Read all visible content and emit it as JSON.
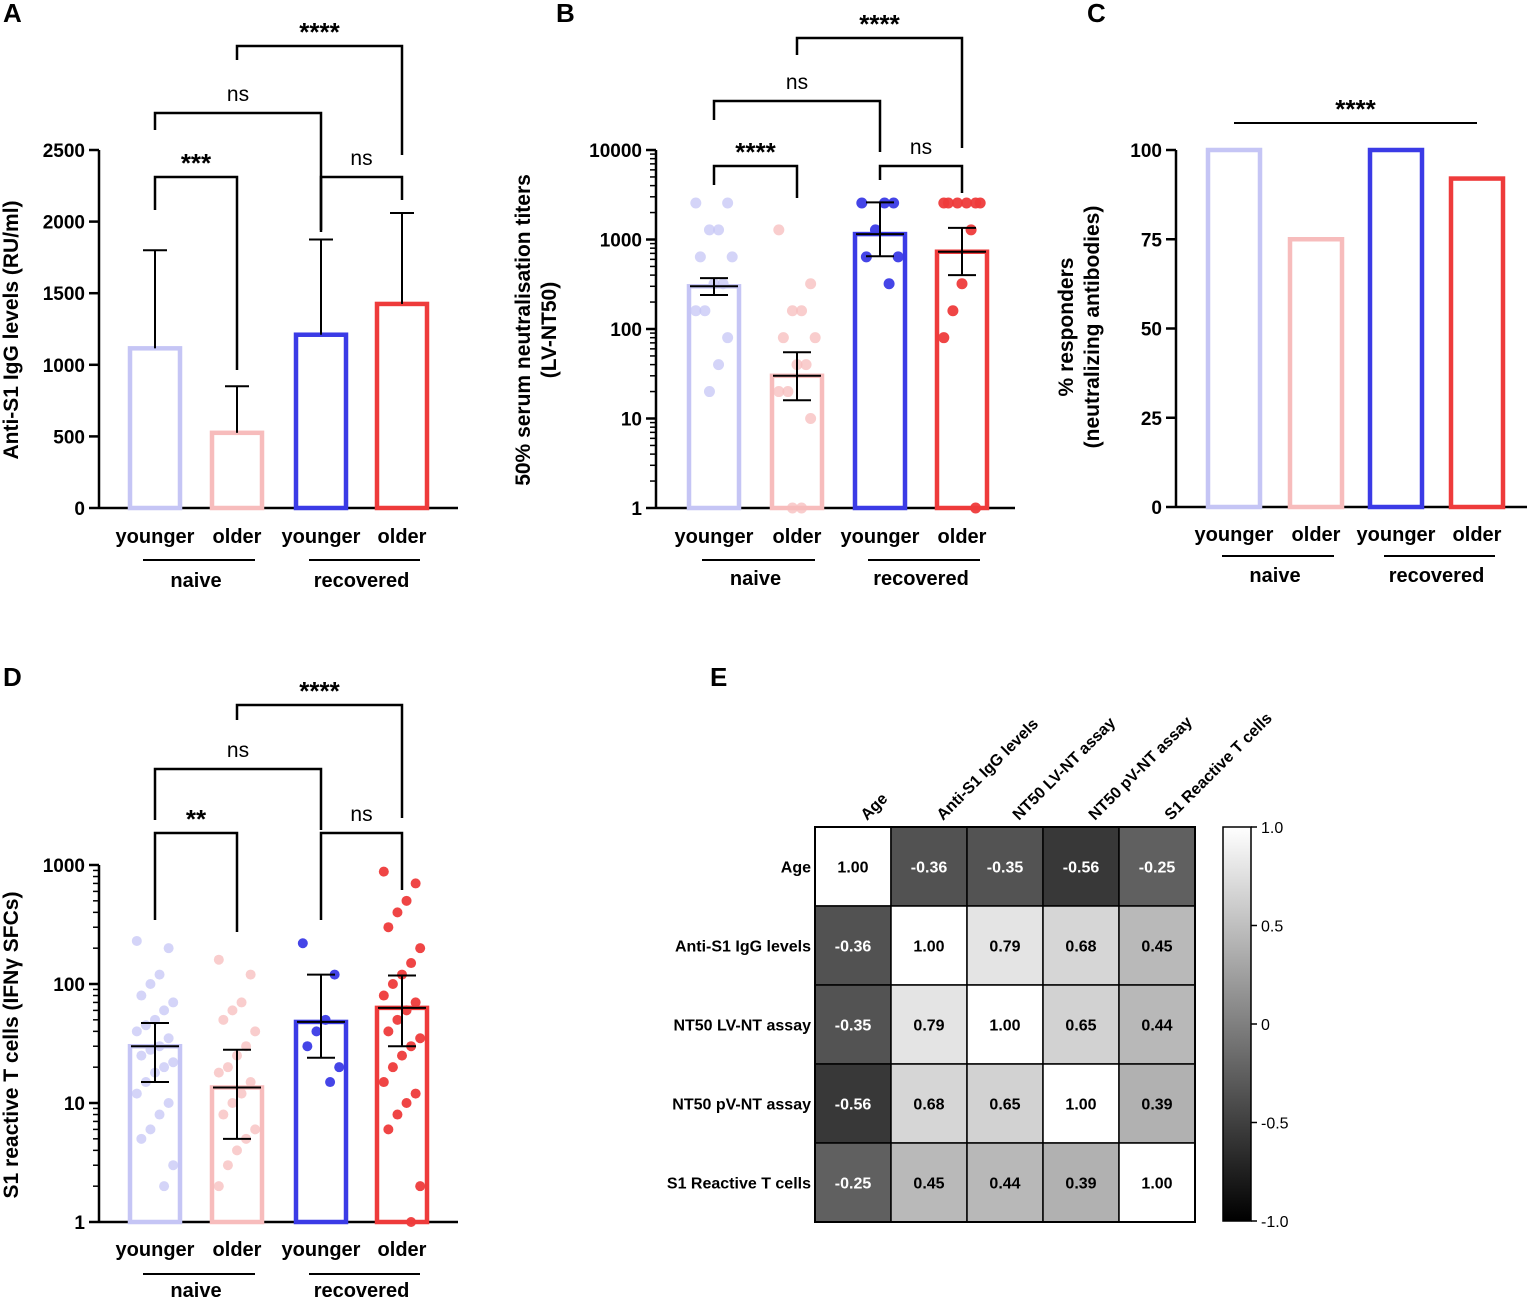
{
  "colors": {
    "naive_younger": "#c5c5f5",
    "naive_older": "#f7bcbc",
    "recovered_younger": "#3b3be6",
    "recovered_older": "#ee3b3b"
  },
  "categories": [
    "younger",
    "older",
    "younger",
    "older"
  ],
  "groups": [
    "naive",
    "recovered"
  ],
  "chart_data": [
    {
      "panel": "A",
      "type": "bar",
      "scale": "linear",
      "ylabel": "Anti-S1 IgG levels (RU/ml)",
      "ylim": [
        0,
        2500
      ],
      "yticks": [
        "0",
        "500",
        "1000",
        "1500",
        "2000",
        "2500"
      ],
      "values": [
        1115,
        525,
        1210,
        1425
      ],
      "error_upper": [
        1800,
        850,
        1875,
        2060
      ],
      "comparisons": [
        {
          "from": 0,
          "to": 1,
          "label": "***"
        },
        {
          "from": 2,
          "to": 3,
          "label": "ns"
        },
        {
          "from": 0,
          "to": 2,
          "label": "ns"
        },
        {
          "from": 1,
          "to": 3,
          "label": "****"
        }
      ]
    },
    {
      "panel": "B",
      "type": "bar",
      "scale": "log",
      "ylabel": "50% serum neutralisation titers",
      "ylabel2": "(LV-NT50)",
      "ylim": [
        1,
        10000
      ],
      "yticks": [
        "1",
        "10",
        "100",
        "1000",
        "10000"
      ],
      "values": [
        300,
        30,
        1150,
        730
      ],
      "error_low": [
        240,
        16,
        650,
        400
      ],
      "error_high": [
        370,
        55,
        2600,
        1350
      ],
      "points": [
        [
          2560,
          2560,
          1280,
          1280,
          640,
          640,
          320,
          320,
          160,
          160,
          80,
          40,
          20
        ],
        [
          1280,
          320,
          160,
          160,
          80,
          80,
          40,
          40,
          20,
          20,
          10,
          1,
          1
        ],
        [
          2560,
          2560,
          2560,
          1280,
          640,
          640,
          320
        ],
        [
          2560,
          2560,
          2560,
          2560,
          2560,
          2560,
          1280,
          320,
          160,
          80,
          1
        ]
      ],
      "comparisons": [
        {
          "from": 0,
          "to": 1,
          "label": "****"
        },
        {
          "from": 2,
          "to": 3,
          "label": "ns"
        },
        {
          "from": 0,
          "to": 2,
          "label": "ns"
        },
        {
          "from": 1,
          "to": 3,
          "label": "****"
        }
      ]
    },
    {
      "panel": "C",
      "type": "bar",
      "scale": "linear",
      "ylabel": "% responders",
      "ylabel2": "(neutralizing antibodies)",
      "ylim": [
        0,
        100
      ],
      "yticks": [
        "0",
        "25",
        "50",
        "75",
        "100"
      ],
      "values": [
        100,
        75,
        100,
        92
      ],
      "comparisons": [
        {
          "from": 0,
          "to": 3,
          "label": "****",
          "style": "line"
        }
      ]
    },
    {
      "panel": "D",
      "type": "bar",
      "scale": "log",
      "ylabel": "S1 reactive T cells (IFNγ SFCs)",
      "ylim": [
        1,
        1000
      ],
      "yticks": [
        "1",
        "10",
        "100",
        "1000"
      ],
      "values": [
        30,
        13.5,
        48,
        63
      ],
      "error_low": [
        15,
        5,
        24,
        30
      ],
      "error_high": [
        47,
        28,
        120,
        118
      ],
      "points": [
        [
          230,
          200,
          120,
          100,
          80,
          70,
          60,
          50,
          45,
          40,
          35,
          30,
          28,
          25,
          22,
          20,
          18,
          15,
          12,
          10,
          8,
          6,
          5,
          3,
          2
        ],
        [
          160,
          120,
          70,
          60,
          50,
          40,
          30,
          25,
          20,
          18,
          15,
          12,
          10,
          8,
          6,
          5,
          4,
          3,
          2
        ],
        [
          220,
          120,
          50,
          40,
          30,
          20,
          15
        ],
        [
          880,
          700,
          500,
          400,
          300,
          200,
          150,
          120,
          100,
          80,
          70,
          60,
          50,
          40,
          35,
          30,
          25,
          20,
          15,
          12,
          10,
          8,
          6,
          2,
          1
        ]
      ],
      "comparisons": [
        {
          "from": 0,
          "to": 1,
          "label": "**"
        },
        {
          "from": 2,
          "to": 3,
          "label": "ns"
        },
        {
          "from": 0,
          "to": 2,
          "label": "ns"
        },
        {
          "from": 1,
          "to": 3,
          "label": "****"
        }
      ]
    },
    {
      "panel": "E",
      "type": "heatmap",
      "labels": [
        "Age",
        "Anti-S1 IgG levels",
        "NT50 LV-NT assay",
        "NT50 pV-NT assay",
        "S1 Reactive T cells"
      ],
      "matrix": [
        [
          1.0,
          -0.36,
          -0.35,
          -0.56,
          -0.25
        ],
        [
          -0.36,
          1.0,
          0.79,
          0.68,
          0.45
        ],
        [
          -0.35,
          0.79,
          1.0,
          0.65,
          0.44
        ],
        [
          -0.56,
          0.68,
          0.65,
          1.0,
          0.39
        ],
        [
          -0.25,
          0.45,
          0.44,
          0.39,
          1.0
        ]
      ],
      "colorbar": {
        "range": [
          -1.0,
          1.0
        ],
        "ticks": [
          "1.0",
          "0.5",
          "0",
          "-0.5",
          "-1.0"
        ]
      }
    }
  ]
}
